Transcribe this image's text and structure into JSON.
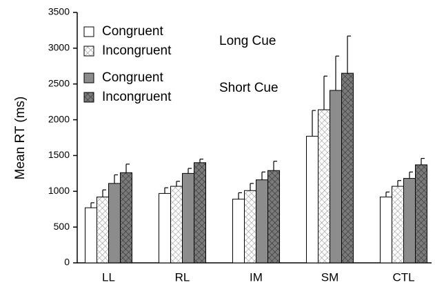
{
  "chart_data": {
    "type": "bar",
    "y_label": "Mean RT (ms)",
    "categories": [
      "LL",
      "RL",
      "IM",
      "SM",
      "CTL"
    ],
    "series": [
      {
        "name": "Congruent",
        "color": "#ffffff",
        "hatch": false,
        "values": [
          770,
          970,
          890,
          1770,
          920
        ],
        "errors": [
          70,
          80,
          90,
          360,
          70
        ]
      },
      {
        "name": "Incongruent",
        "color": "#ffffff",
        "hatch": true,
        "values": [
          920,
          1070,
          1010,
          2140,
          1070
        ],
        "errors": [
          100,
          70,
          100,
          470,
          80
        ]
      },
      {
        "name": "Congruent",
        "color": "#8c8c8c",
        "hatch": false,
        "values": [
          1110,
          1250,
          1160,
          2410,
          1180
        ],
        "errors": [
          120,
          70,
          110,
          480,
          90
        ]
      },
      {
        "name": "Incongruent",
        "color": "#7a7a7a",
        "hatch": true,
        "values": [
          1260,
          1400,
          1290,
          2650,
          1370
        ],
        "errors": [
          120,
          50,
          130,
          520,
          90
        ]
      }
    ],
    "annotations": [
      "Long Cue",
      "Short Cue"
    ],
    "ylim": [
      0,
      3500
    ],
    "yticks": [
      0,
      500,
      1000,
      1500,
      2000,
      2500,
      3000,
      3500
    ],
    "grid": false
  }
}
